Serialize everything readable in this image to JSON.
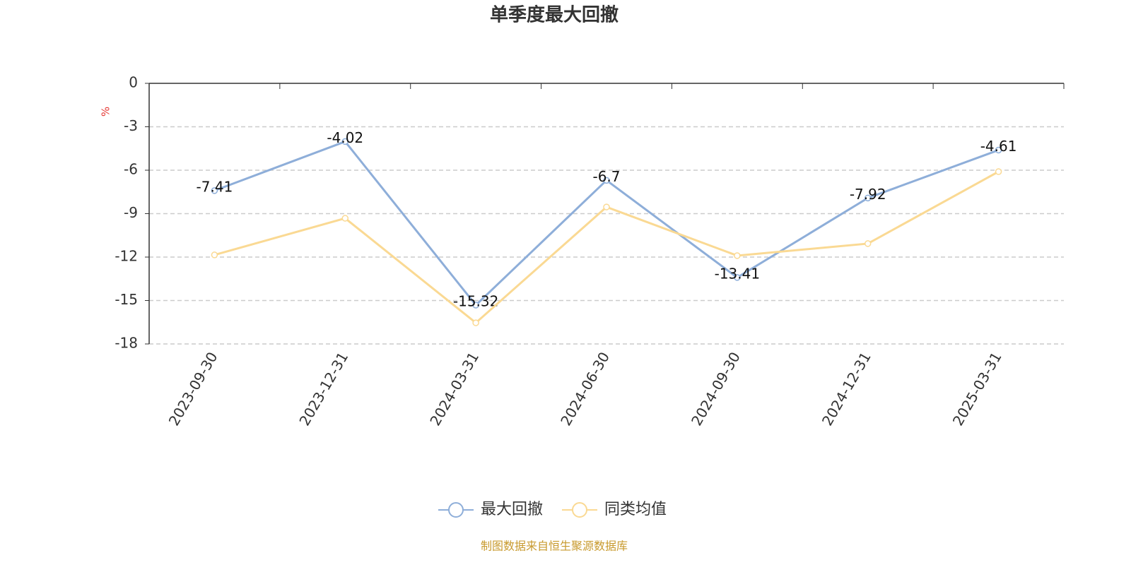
{
  "chart_data": {
    "type": "line",
    "title": "单季度最大回撤",
    "y_unit": "%",
    "categories": [
      "2023-09-30",
      "2023-12-31",
      "2024-03-31",
      "2024-06-30",
      "2024-09-30",
      "2024-12-31",
      "2025-03-31"
    ],
    "series": [
      {
        "name": "最大回撤",
        "color": "#8eaed9",
        "values": [
          -7.41,
          -4.02,
          -15.32,
          -6.7,
          -13.41,
          -7.92,
          -4.61
        ],
        "show_labels": true
      },
      {
        "name": "同类均值",
        "color": "#fad993",
        "values": [
          -11.85,
          -9.32,
          -16.54,
          -8.54,
          -11.9,
          -11.07,
          -6.1
        ],
        "show_labels": false
      }
    ],
    "ylim": [
      -18,
      0
    ],
    "yticks": [
      0,
      -3,
      -6,
      -9,
      -12,
      -15,
      -18
    ],
    "grid": true,
    "source": "制图数据来自恒生聚源数据库"
  }
}
